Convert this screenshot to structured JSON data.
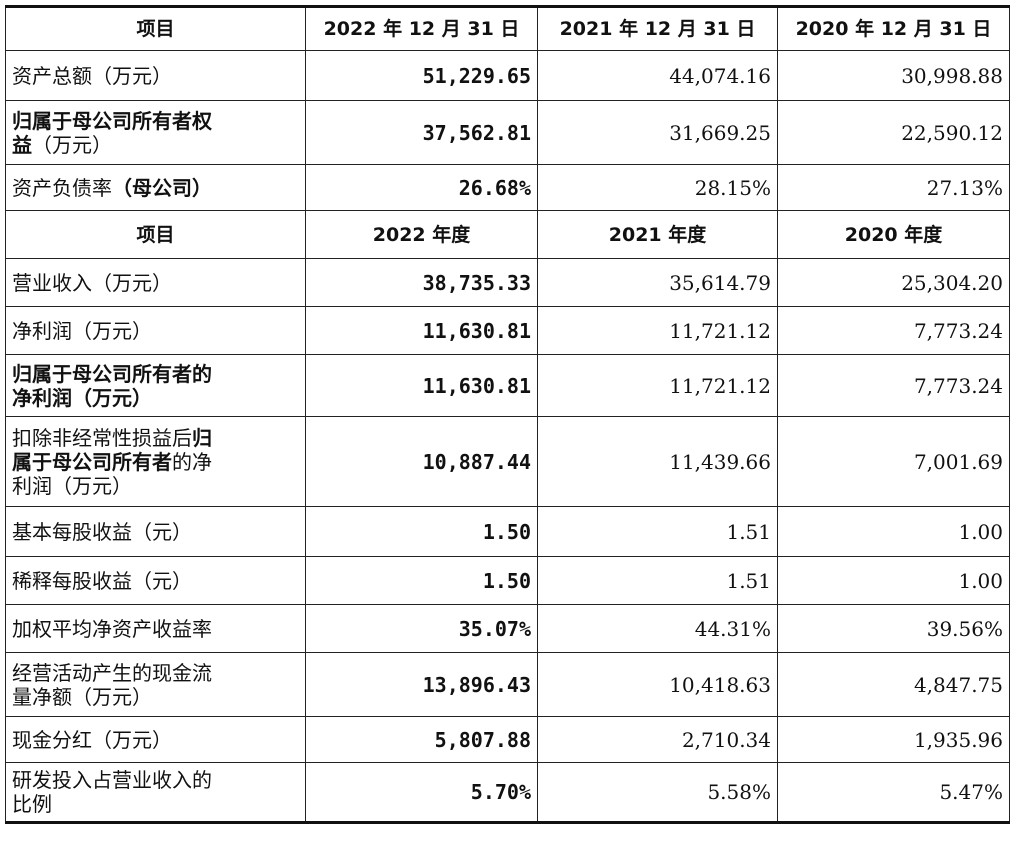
{
  "header1": {
    "item": "项目",
    "col1": "2022 年 12 月 31 日",
    "col2": "2021 年 12 月 31 日",
    "col3": "2020 年 12 月 31 日"
  },
  "header2": {
    "item": "项目",
    "col1": "2022 年度",
    "col2": "2021 年度",
    "col3": "2020 年度"
  },
  "rows": [
    {
      "l1": "资产总额（万元）",
      "v1": "51,229.65",
      "v2": "44,074.16",
      "v3": "30,998.88"
    },
    {
      "l1b": "归属于母公司所有者权",
      "l2b": "益",
      "l2": "（万元）",
      "v1": "37,562.81",
      "v2": "31,669.25",
      "v3": "22,590.12"
    },
    {
      "l1": "资产负债率",
      "l1b": "（母公司）",
      "v1": "26.68%",
      "v2": "28.15%",
      "v3": "27.13%"
    },
    {
      "l1": "营业收入（万元）",
      "v1": "38,735.33",
      "v2": "35,614.79",
      "v3": "25,304.20"
    },
    {
      "l1": "净利润（万元）",
      "v1": "11,630.81",
      "v2": "11,721.12",
      "v3": "7,773.24"
    },
    {
      "l1b": "归属于母公司所有者的",
      "l2b": "净利润（万元）",
      "v1": "11,630.81",
      "v2": "11,721.12",
      "v3": "7,773.24"
    },
    {
      "l1": "扣除非经常性损益后",
      "l1b": "归",
      "l2b": "属于母公司所有者",
      "l2": "的净",
      "l3": "利润（万元）",
      "v1": "10,887.44",
      "v2": "11,439.66",
      "v3": "7,001.69"
    },
    {
      "l1": "基本每股收益（元）",
      "v1": "1.50",
      "v2": "1.51",
      "v3": "1.00"
    },
    {
      "l1": "稀释每股收益（元）",
      "v1": "1.50",
      "v2": "1.51",
      "v3": "1.00"
    },
    {
      "l1": "加权平均净资产收益率",
      "v1": "35.07%",
      "v2": "44.31%",
      "v3": "39.56%"
    },
    {
      "l1": "经营活动产生的现金流",
      "l2": "量净额（万元）",
      "v1": "13,896.43",
      "v2": "10,418.63",
      "v3": "4,847.75"
    },
    {
      "l1": "现金分红（万元）",
      "v1": "5,807.88",
      "v2": "2,710.34",
      "v3": "1,935.96"
    },
    {
      "l1": "研发投入占营业收入的",
      "l2": "比例",
      "v1": "5.70%",
      "v2": "5.58%",
      "v3": "5.47%"
    }
  ]
}
